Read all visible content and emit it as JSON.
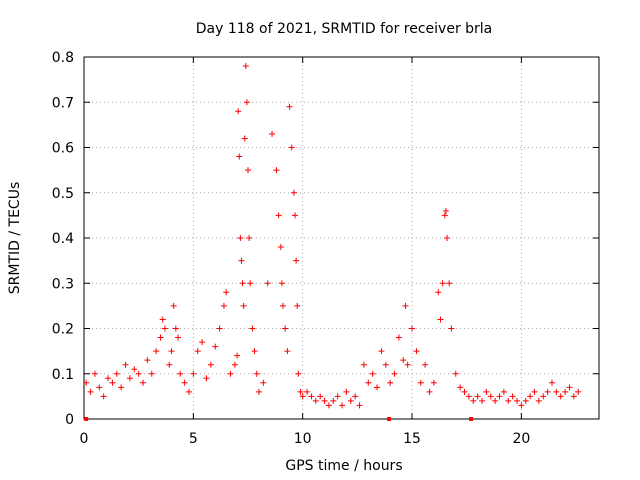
{
  "chart_data": {
    "type": "scatter",
    "title": "Day 118 of 2021, SRMTID for receiver brla",
    "xlabel": "GPS time / hours",
    "ylabel": "SRMTID / TECUs",
    "xlim": [
      0,
      23.55
    ],
    "ylim": [
      0,
      0.8
    ],
    "x_ticks": [
      0,
      5,
      10,
      15,
      20
    ],
    "y_ticks": [
      0,
      0.1,
      0.2,
      0.3,
      0.4,
      0.5,
      0.6,
      0.7,
      0.8
    ],
    "grid": true,
    "marker": "+",
    "color": "#ff0000",
    "series": [
      {
        "name": "SRMTID",
        "x": [
          0.1,
          0.3,
          0.5,
          0.7,
          0.9,
          1.1,
          1.3,
          1.5,
          1.7,
          1.9,
          2.1,
          2.3,
          2.5,
          2.7,
          2.9,
          3.1,
          3.3,
          3.5,
          3.6,
          3.7,
          3.9,
          4.0,
          4.1,
          4.2,
          4.3,
          4.4,
          4.6,
          4.8,
          5.0,
          5.2,
          5.4,
          5.6,
          5.8,
          6.0,
          6.2,
          6.4,
          6.5,
          6.7,
          6.9,
          7.0,
          7.05,
          7.1,
          7.15,
          7.2,
          7.25,
          7.3,
          7.35,
          7.4,
          7.45,
          7.5,
          7.55,
          7.6,
          7.7,
          7.8,
          7.9,
          8.0,
          8.2,
          8.4,
          8.6,
          8.8,
          8.9,
          9.0,
          9.05,
          9.1,
          9.2,
          9.3,
          9.4,
          9.5,
          9.6,
          9.65,
          9.7,
          9.75,
          9.8,
          9.9,
          10.0,
          10.2,
          10.4,
          10.6,
          10.8,
          11.0,
          11.2,
          11.4,
          11.6,
          11.8,
          12.0,
          12.2,
          12.4,
          12.6,
          12.8,
          13.0,
          13.2,
          13.4,
          13.6,
          13.8,
          14.0,
          14.2,
          14.4,
          14.6,
          14.7,
          14.8,
          15.0,
          15.2,
          15.4,
          15.6,
          15.8,
          16.0,
          16.2,
          16.3,
          16.4,
          16.5,
          16.55,
          16.6,
          16.7,
          16.8,
          17.0,
          17.2,
          17.4,
          17.6,
          17.8,
          18.0,
          18.2,
          18.4,
          18.6,
          18.8,
          19.0,
          19.2,
          19.4,
          19.6,
          19.8,
          20.0,
          20.2,
          20.4,
          20.6,
          20.8,
          21.0,
          21.2,
          21.4,
          21.6,
          21.8,
          22.0,
          22.2,
          22.4,
          22.6
        ],
        "y": [
          0.08,
          0.06,
          0.1,
          0.07,
          0.05,
          0.09,
          0.08,
          0.1,
          0.07,
          0.12,
          0.09,
          0.11,
          0.1,
          0.08,
          0.13,
          0.1,
          0.15,
          0.18,
          0.22,
          0.2,
          0.12,
          0.15,
          0.25,
          0.2,
          0.18,
          0.1,
          0.08,
          0.06,
          0.1,
          0.15,
          0.17,
          0.09,
          0.12,
          0.16,
          0.2,
          0.25,
          0.28,
          0.1,
          0.12,
          0.14,
          0.68,
          0.58,
          0.4,
          0.35,
          0.3,
          0.25,
          0.62,
          0.78,
          0.7,
          0.55,
          0.4,
          0.3,
          0.2,
          0.15,
          0.1,
          0.06,
          0.08,
          0.3,
          0.63,
          0.55,
          0.45,
          0.38,
          0.3,
          0.25,
          0.2,
          0.15,
          0.69,
          0.6,
          0.5,
          0.45,
          0.35,
          0.25,
          0.1,
          0.06,
          0.05,
          0.06,
          0.05,
          0.04,
          0.05,
          0.04,
          0.03,
          0.04,
          0.05,
          0.03,
          0.06,
          0.04,
          0.05,
          0.03,
          0.12,
          0.08,
          0.1,
          0.07,
          0.15,
          0.12,
          0.08,
          0.1,
          0.18,
          0.13,
          0.25,
          0.12,
          0.2,
          0.15,
          0.08,
          0.12,
          0.06,
          0.08,
          0.28,
          0.22,
          0.3,
          0.45,
          0.46,
          0.4,
          0.3,
          0.2,
          0.1,
          0.07,
          0.06,
          0.05,
          0.04,
          0.05,
          0.04,
          0.06,
          0.05,
          0.04,
          0.05,
          0.06,
          0.04,
          0.05,
          0.04,
          0.03,
          0.04,
          0.05,
          0.06,
          0.04,
          0.05,
          0.06,
          0.08,
          0.06,
          0.05,
          0.06,
          0.07,
          0.05,
          0.06
        ]
      }
    ],
    "gaps": {
      "x": [
        0.1,
        13.95,
        17.7
      ],
      "y": [
        0,
        0,
        0
      ]
    }
  }
}
